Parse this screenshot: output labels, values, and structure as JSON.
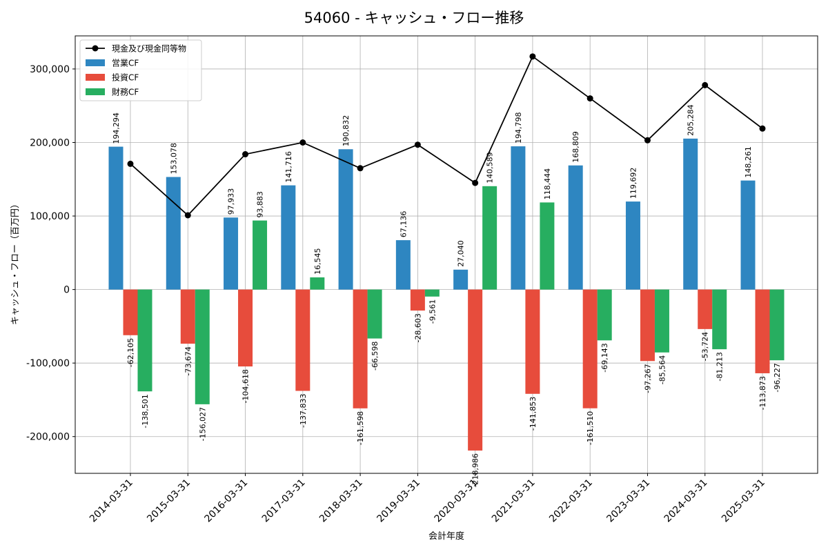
{
  "chart_data": {
    "type": "bar",
    "title": "54060 - キャッシュ・フロー推移",
    "xlabel": "会計年度",
    "ylabel": "キャッシュ・フロー（百万円）",
    "ylim": [
      -250000,
      345000
    ],
    "yticks": [
      -200000,
      -100000,
      0,
      100000,
      200000,
      300000
    ],
    "ytick_labels": [
      "-200,000",
      "-100,000",
      "0",
      "100,000",
      "200,000",
      "300,000"
    ],
    "grid": true,
    "legend_position": "top-left",
    "categories": [
      "2014-03-31",
      "2015-03-31",
      "2016-03-31",
      "2017-03-31",
      "2018-03-31",
      "2019-03-31",
      "2020-03-31",
      "2021-03-31",
      "2022-03-31",
      "2023-03-31",
      "2024-03-31",
      "2025-03-31"
    ],
    "series": [
      {
        "name": "営業CF",
        "kind": "bar",
        "color": "#2e86c1",
        "values": [
          194294,
          153078,
          97933,
          141716,
          190832,
          67136,
          27040,
          194798,
          168809,
          119692,
          205284,
          148261
        ],
        "labels": [
          "194,294",
          "153,078",
          "97,933",
          "141,716",
          "190,832",
          "67,136",
          "27,040",
          "194,798",
          "168,809",
          "119,692",
          "205,284",
          "148,261"
        ]
      },
      {
        "name": "投資CF",
        "kind": "bar",
        "color": "#e74c3c",
        "values": [
          -62105,
          -73674,
          -104618,
          -137833,
          -161598,
          -28603,
          -218986,
          -141853,
          -161510,
          -97267,
          -53724,
          -113873
        ],
        "labels": [
          "-62,105",
          "-73,674",
          "-104,618",
          "-137,833",
          "-161,598",
          "-28,603",
          "-218,986",
          "-141,853",
          "-161,510",
          "-97,267",
          "-53,724",
          "-113,873"
        ]
      },
      {
        "name": "財務CF",
        "kind": "bar",
        "color": "#27ae60",
        "values": [
          -138501,
          -156027,
          93883,
          16545,
          -66598,
          -9561,
          140589,
          118444,
          -69143,
          -85564,
          -81213,
          -96227
        ],
        "labels": [
          "-138,501",
          "-156,027",
          "93,883",
          "16,545",
          "-66,598",
          "-9,561",
          "140,589",
          "118,444",
          "-69,143",
          "-85,564",
          "-81,213",
          "-96,227"
        ]
      },
      {
        "name": "現金及び現金同等物",
        "kind": "line",
        "color": "#000000",
        "values": [
          171000,
          101000,
          184000,
          200000,
          165000,
          197000,
          145000,
          317000,
          260000,
          203000,
          278000,
          219000
        ]
      }
    ]
  }
}
